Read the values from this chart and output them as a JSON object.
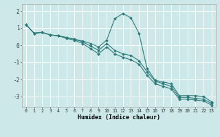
{
  "xlabel": "Humidex (Indice chaleur)",
  "background_color": "#cce8e8",
  "grid_color": "#ffffff",
  "line_color": "#2d7a7a",
  "xlim": [
    -0.5,
    23.5
  ],
  "ylim": [
    -3.6,
    2.4
  ],
  "yticks": [
    -3,
    -2,
    -1,
    0,
    1,
    2
  ],
  "xticks": [
    0,
    1,
    2,
    3,
    4,
    5,
    6,
    7,
    8,
    9,
    10,
    11,
    12,
    13,
    14,
    15,
    16,
    17,
    18,
    19,
    20,
    21,
    22,
    23
  ],
  "line1_x": [
    0,
    1,
    2,
    3,
    4,
    5,
    6,
    7,
    8,
    9,
    10,
    11,
    12,
    13,
    14,
    15,
    16,
    17,
    18,
    19,
    20,
    21,
    22,
    23
  ],
  "line1_y": [
    1.2,
    0.7,
    0.75,
    0.6,
    0.55,
    0.45,
    0.35,
    0.25,
    0.1,
    -0.1,
    0.3,
    1.55,
    1.85,
    1.6,
    0.7,
    -1.35,
    -2.05,
    -2.15,
    -2.25,
    -2.95,
    -2.95,
    -2.95,
    -3.0,
    -3.3
  ],
  "line2_x": [
    0,
    1,
    2,
    3,
    4,
    5,
    6,
    7,
    8,
    9,
    10,
    11,
    12,
    13,
    14,
    15,
    16,
    17,
    18,
    19,
    20,
    21,
    22,
    23
  ],
  "line2_y": [
    1.2,
    0.7,
    0.75,
    0.6,
    0.55,
    0.45,
    0.35,
    0.2,
    -0.05,
    -0.3,
    0.1,
    -0.3,
    -0.5,
    -0.6,
    -0.9,
    -1.55,
    -2.1,
    -2.25,
    -2.4,
    -3.05,
    -3.05,
    -3.1,
    -3.15,
    -3.4
  ],
  "line3_x": [
    0,
    1,
    2,
    3,
    4,
    5,
    6,
    7,
    8,
    9,
    10,
    11,
    12,
    13,
    14,
    15,
    16,
    17,
    18,
    19,
    20,
    21,
    22,
    23
  ],
  "line3_y": [
    1.2,
    0.7,
    0.75,
    0.6,
    0.55,
    0.4,
    0.3,
    0.1,
    -0.2,
    -0.5,
    -0.1,
    -0.5,
    -0.7,
    -0.85,
    -1.1,
    -1.75,
    -2.25,
    -2.4,
    -2.55,
    -3.15,
    -3.15,
    -3.2,
    -3.25,
    -3.5
  ]
}
